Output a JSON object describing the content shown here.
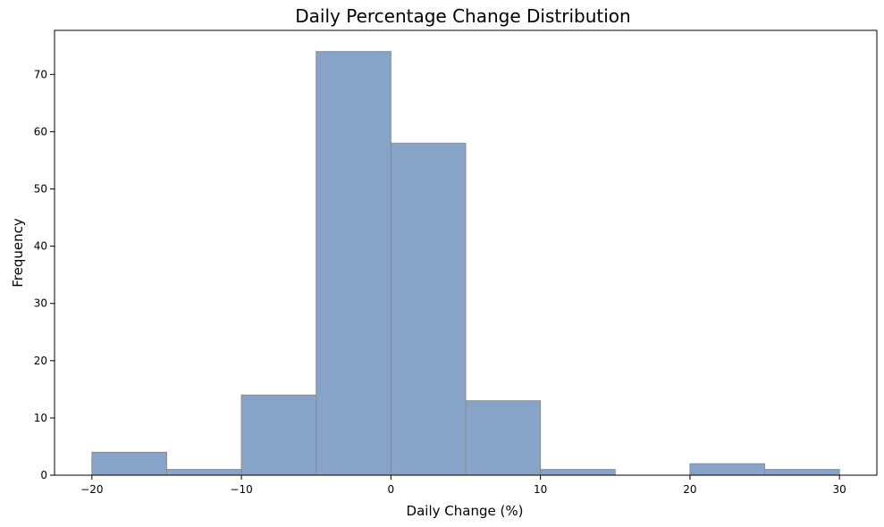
{
  "chart_data": {
    "type": "bar",
    "title": "Daily Percentage Change Distribution",
    "xlabel": "Daily Change (%)",
    "ylabel": "Frequency",
    "bins": [
      {
        "x0": -20,
        "x1": -15,
        "count": 4
      },
      {
        "x0": -15,
        "x1": -10,
        "count": 1
      },
      {
        "x0": -10,
        "x1": -5,
        "count": 14
      },
      {
        "x0": -5,
        "x1": 0,
        "count": 74
      },
      {
        "x0": 0,
        "x1": 5,
        "count": 58
      },
      {
        "x0": 5,
        "x1": 10,
        "count": 13
      },
      {
        "x0": 10,
        "x1": 15,
        "count": 1
      },
      {
        "x0": 15,
        "x1": 20,
        "count": 0
      },
      {
        "x0": 20,
        "x1": 25,
        "count": 2
      },
      {
        "x0": 25,
        "x1": 30,
        "count": 1
      }
    ],
    "xlim": [
      -22.5,
      32.5
    ],
    "ylim": [
      0,
      77.7
    ],
    "x_ticks": [
      -20,
      -10,
      0,
      10,
      20,
      30
    ],
    "x_tick_labels": [
      "−20",
      "−10",
      "0",
      "10",
      "20",
      "30"
    ],
    "y_ticks": [
      0,
      10,
      20,
      30,
      40,
      50,
      60,
      70
    ],
    "y_tick_labels": [
      "0",
      "10",
      "20",
      "30",
      "40",
      "50",
      "60",
      "70"
    ],
    "bar_color": "#87a4c8",
    "bar_edge_color": "#8c8c8c",
    "grid": false,
    "legend": "none"
  }
}
